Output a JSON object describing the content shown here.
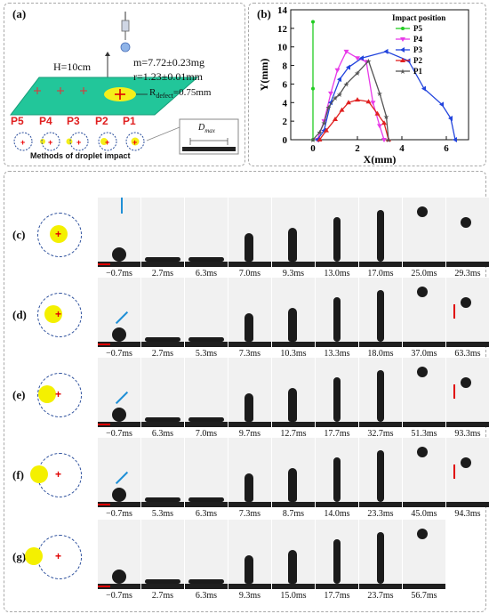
{
  "panel_a": {
    "tag": "(a)",
    "mass": "m=7.72±0.23mg",
    "radius": "r=1.23±0.01mm",
    "height": "H=10cm",
    "rdefect": "R",
    "rdefect_sub": "defect",
    "rdefect_val": "=0.75mm",
    "positions": [
      "P5",
      "P4",
      "P3",
      "P2",
      "P1"
    ],
    "methods_label": "Methods of droplet impact",
    "dmax": "D",
    "dmax_sub": "max"
  },
  "panel_b": {
    "tag": "(b)"
  },
  "chart_data": {
    "type": "line",
    "title": "",
    "xlabel": "X(mm)",
    "ylabel": "Y(mm)",
    "xlim": [
      -1,
      7
    ],
    "ylim": [
      0,
      14
    ],
    "xticks": [
      "0",
      "2",
      "4",
      "6"
    ],
    "yticks": [
      "0",
      "2",
      "4",
      "6",
      "8",
      "10",
      "12",
      "14"
    ],
    "legend_title": "Impact position",
    "legend_position": "top-right",
    "series": [
      {
        "name": "P5",
        "color": "#22cc22",
        "marker": "circle",
        "points": [
          [
            0,
            0
          ],
          [
            0,
            5.5
          ],
          [
            0,
            12.7
          ]
        ]
      },
      {
        "name": "P4",
        "color": "#e83ae8",
        "marker": "triangle-down",
        "points": [
          [
            0.2,
            0
          ],
          [
            0.5,
            2
          ],
          [
            0.8,
            5
          ],
          [
            1.1,
            7.5
          ],
          [
            1.5,
            9.5
          ],
          [
            2.0,
            8.8
          ],
          [
            2.4,
            8.4
          ],
          [
            2.7,
            4.0
          ],
          [
            3.0,
            1.5
          ],
          [
            3.2,
            0
          ]
        ]
      },
      {
        "name": "P3",
        "color": "#2244dd",
        "marker": "triangle-left",
        "points": [
          [
            0.2,
            0
          ],
          [
            0.5,
            1
          ],
          [
            0.8,
            4
          ],
          [
            1.2,
            6.5
          ],
          [
            1.6,
            7.8
          ],
          [
            2.2,
            8.8
          ],
          [
            3.3,
            9.5
          ],
          [
            4.3,
            8.5
          ],
          [
            5.0,
            5.5
          ],
          [
            5.8,
            3.8
          ],
          [
            6.2,
            2.3
          ],
          [
            6.4,
            0
          ]
        ]
      },
      {
        "name": "P2",
        "color": "#e02020",
        "marker": "triangle-up",
        "points": [
          [
            0.3,
            0
          ],
          [
            0.6,
            1
          ],
          [
            1.0,
            2.2
          ],
          [
            1.3,
            3.2
          ],
          [
            1.6,
            4.0
          ],
          [
            2.0,
            4.3
          ],
          [
            2.5,
            4.1
          ],
          [
            2.9,
            2.8
          ],
          [
            3.2,
            1.8
          ],
          [
            3.4,
            0
          ]
        ]
      },
      {
        "name": "P1",
        "color": "#555555",
        "marker": "star",
        "points": [
          [
            0.0,
            0
          ],
          [
            0.3,
            0.8
          ],
          [
            0.5,
            1.8
          ],
          [
            0.7,
            3.5
          ],
          [
            1.0,
            4.5
          ],
          [
            1.2,
            4.9
          ],
          [
            1.5,
            6.0
          ],
          [
            2.0,
            7.2
          ],
          [
            2.5,
            8.5
          ],
          [
            3.0,
            5.0
          ],
          [
            3.3,
            2.5
          ],
          [
            3.4,
            0
          ]
        ]
      }
    ]
  },
  "rows": [
    {
      "tag": "(c)",
      "times": [
        "−0.7ms",
        "2.7ms",
        "6.3ms",
        "7.0ms",
        "9.3ms",
        "13.0ms",
        "17.0ms",
        "25.0ms",
        "29.3ms"
      ]
    },
    {
      "tag": "(d)",
      "times": [
        "−0.7ms",
        "2.7ms",
        "5.3ms",
        "7.3ms",
        "10.3ms",
        "13.3ms",
        "18.0ms",
        "37.0ms",
        "63.3ms"
      ]
    },
    {
      "tag": "(e)",
      "times": [
        "−0.7ms",
        "6.3ms",
        "7.0ms",
        "9.7ms",
        "12.7ms",
        "17.7ms",
        "32.7ms",
        "51.3ms",
        "93.3ms"
      ]
    },
    {
      "tag": "(f)",
      "times": [
        "−0.7ms",
        "5.3ms",
        "6.3ms",
        "7.3ms",
        "8.7ms",
        "14.0ms",
        "23.3ms",
        "45.0ms",
        "94.3ms"
      ]
    },
    {
      "tag": "(g)",
      "times": [
        "−0.7ms",
        "2.7ms",
        "6.3ms",
        "9.3ms",
        "15.0ms",
        "17.7ms",
        "23.7ms",
        "56.7ms"
      ]
    }
  ]
}
